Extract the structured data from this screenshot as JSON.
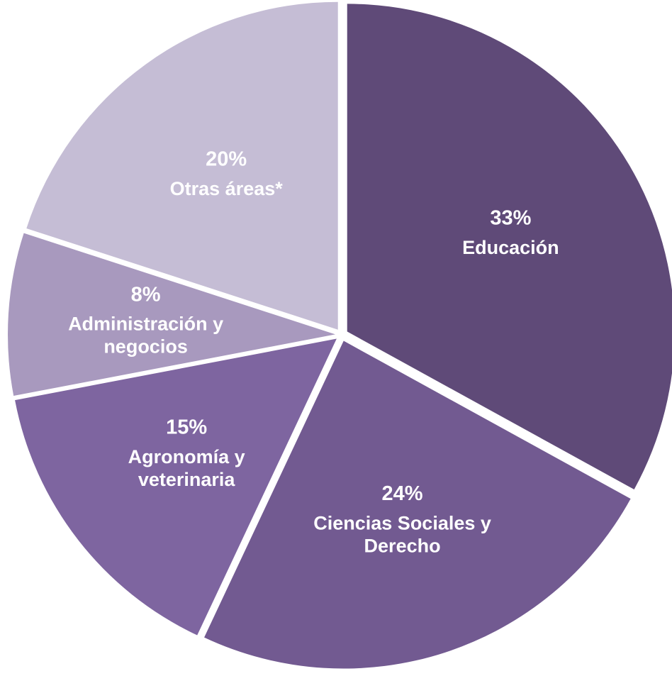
{
  "chart_data": {
    "type": "pie",
    "categories": [
      "Educación",
      "Ciencias Sociales y Derecho",
      "Agronomía y veterinaria",
      "Administración y negocios",
      "Otras áreas*"
    ],
    "values": [
      33,
      24,
      15,
      8,
      20
    ],
    "value_labels": [
      "33%",
      "24%",
      "15%",
      "8%",
      "20%"
    ],
    "colors": [
      "#5f4a78",
      "#725a91",
      "#7e65a0",
      "#a899be",
      "#c5bdd5"
    ]
  }
}
